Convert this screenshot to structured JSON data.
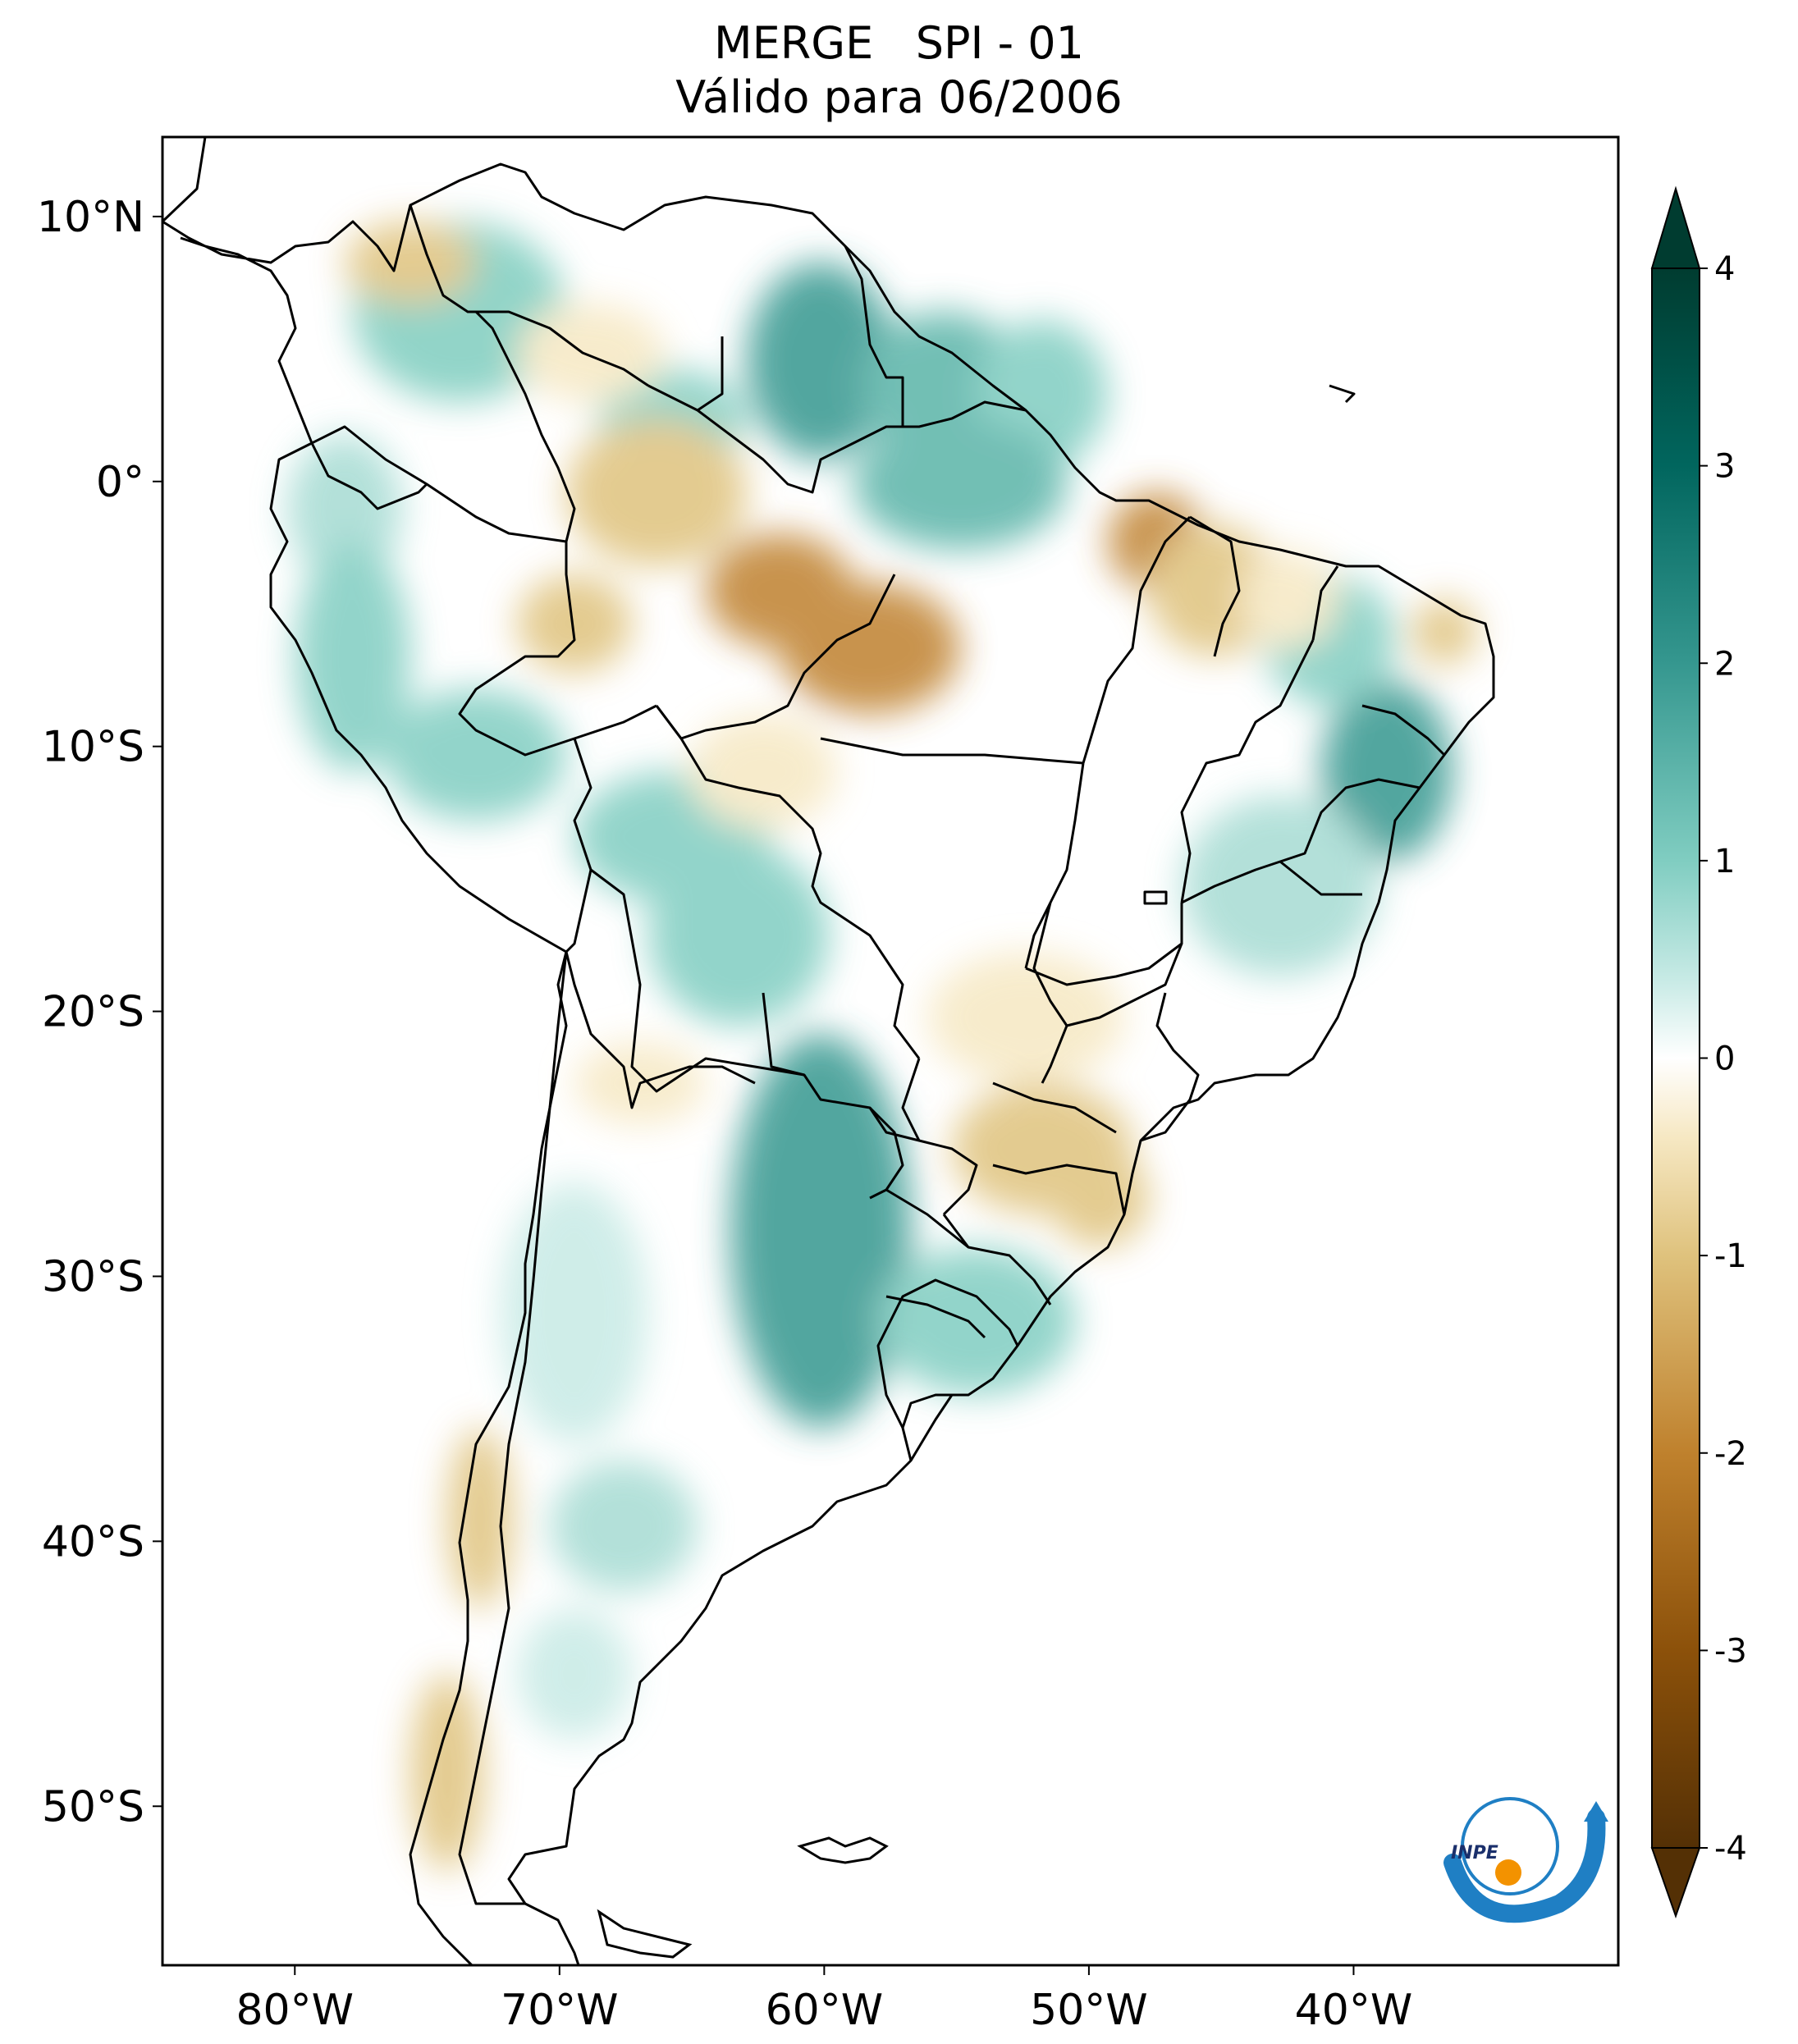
{
  "title": {
    "line1": "MERGE   SPI - 01",
    "line2": "Válido para 06/2006"
  },
  "map": {
    "extent": {
      "lon": [
        -85,
        -30
      ],
      "lat": [
        -56,
        13
      ]
    },
    "lon_ticks": [
      {
        "value": -80,
        "label": "80°W"
      },
      {
        "value": -70,
        "label": "70°W"
      },
      {
        "value": -60,
        "label": "60°W"
      },
      {
        "value": -50,
        "label": "50°W"
      },
      {
        "value": -40,
        "label": "40°W"
      }
    ],
    "lat_ticks": [
      {
        "value": 10,
        "label": "10°N"
      },
      {
        "value": 0,
        "label": "0°"
      },
      {
        "value": -10,
        "label": "10°S"
      },
      {
        "value": -20,
        "label": "20°S"
      },
      {
        "value": -30,
        "label": "30°S"
      },
      {
        "value": -40,
        "label": "40°S"
      },
      {
        "value": -50,
        "label": "50°S"
      }
    ]
  },
  "colorbar": {
    "min": -4,
    "max": 4,
    "ticks": [
      {
        "value": 4,
        "label": "4"
      },
      {
        "value": 3,
        "label": "3"
      },
      {
        "value": 2,
        "label": "2"
      },
      {
        "value": 1,
        "label": "1"
      },
      {
        "value": 0,
        "label": "0"
      },
      {
        "value": -1,
        "label": "-1"
      },
      {
        "value": -2,
        "label": "-2"
      },
      {
        "value": -3,
        "label": "-3"
      },
      {
        "value": -4,
        "label": "-4"
      }
    ],
    "colors": [
      "#543005",
      "#8c510a",
      "#bf812d",
      "#dfc27d",
      "#f6e8c3",
      "#ffffff",
      "#c7eae5",
      "#80cdc1",
      "#35978f",
      "#01665e",
      "#003c30"
    ]
  },
  "logo": {
    "text": "INPE"
  }
}
